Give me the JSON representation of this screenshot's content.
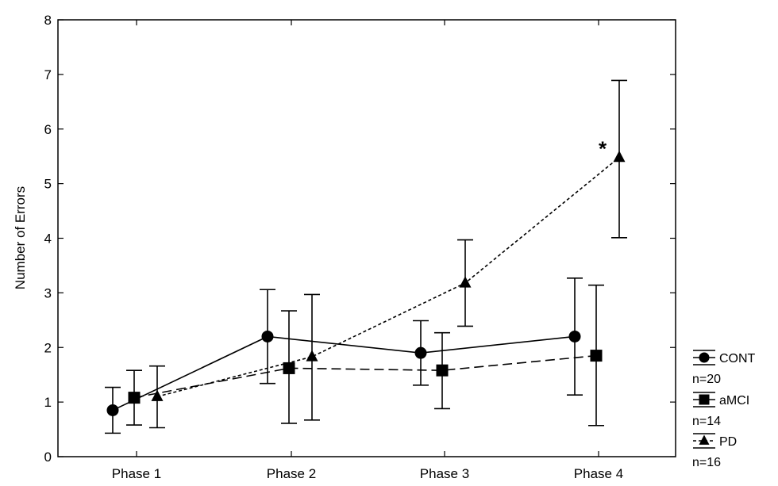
{
  "chart_data": {
    "type": "line",
    "title": "",
    "xlabel": "",
    "ylabel": "Number of  Errors",
    "ylim": [
      0,
      8
    ],
    "yticks": [
      0,
      1,
      2,
      3,
      4,
      5,
      6,
      7,
      8
    ],
    "categories": [
      "Phase 1",
      "Phase 2",
      "Phase 3",
      "Phase 4"
    ],
    "grid": false,
    "legend_position": "bottom-right",
    "series": [
      {
        "name": "CONT",
        "n_label": "n=20",
        "marker": "circle",
        "line": "solid",
        "values": [
          0.85,
          2.2,
          1.9,
          2.2
        ],
        "err_low": [
          0.43,
          1.34,
          1.31,
          1.13
        ],
        "err_high": [
          1.27,
          3.06,
          2.49,
          3.27
        ]
      },
      {
        "name": "aMCI",
        "n_label": "n=14",
        "marker": "square",
        "line": "dashed",
        "values": [
          1.08,
          1.62,
          1.58,
          1.85
        ],
        "err_low": [
          0.58,
          0.61,
          0.88,
          0.57
        ],
        "err_high": [
          1.58,
          2.67,
          2.27,
          3.14
        ]
      },
      {
        "name": "PD",
        "n_label": "n=16",
        "marker": "triangle",
        "line": "dotted",
        "values": [
          1.1,
          1.83,
          3.18,
          5.48
        ],
        "err_low": [
          0.53,
          0.67,
          2.39,
          4.01
        ],
        "err_high": [
          1.66,
          2.97,
          3.97,
          6.89
        ]
      }
    ],
    "annotations": [
      {
        "text": "*",
        "category_index": 3,
        "y": 5.7
      }
    ]
  }
}
